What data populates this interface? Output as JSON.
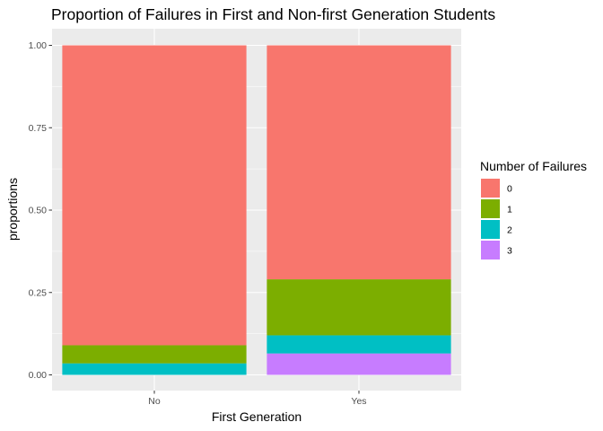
{
  "chart_data": {
    "type": "bar",
    "stacked": true,
    "title": "Proportion of Failures in First and Non-first Generation Students",
    "xlabel": "First Generation",
    "ylabel": "proportions",
    "categories": [
      "No",
      "Yes"
    ],
    "ylim": [
      0,
      1
    ],
    "yticks": [
      0,
      0.25,
      0.5,
      0.75,
      1
    ],
    "ytick_labels": [
      "0.00",
      "0.25",
      "0.50",
      "0.75",
      "1.00"
    ],
    "grid": true,
    "legend": {
      "title": "Number of Failures",
      "position": "right"
    },
    "series": [
      {
        "name": "0",
        "color": "#F8766D",
        "values": [
          0.91,
          0.71
        ]
      },
      {
        "name": "1",
        "color": "#7CAE00",
        "values": [
          0.055,
          0.17
        ]
      },
      {
        "name": "2",
        "color": "#00BFC4",
        "values": [
          0.035,
          0.055
        ]
      },
      {
        "name": "3",
        "color": "#C77CFF",
        "values": [
          0.0,
          0.065
        ]
      }
    ]
  }
}
